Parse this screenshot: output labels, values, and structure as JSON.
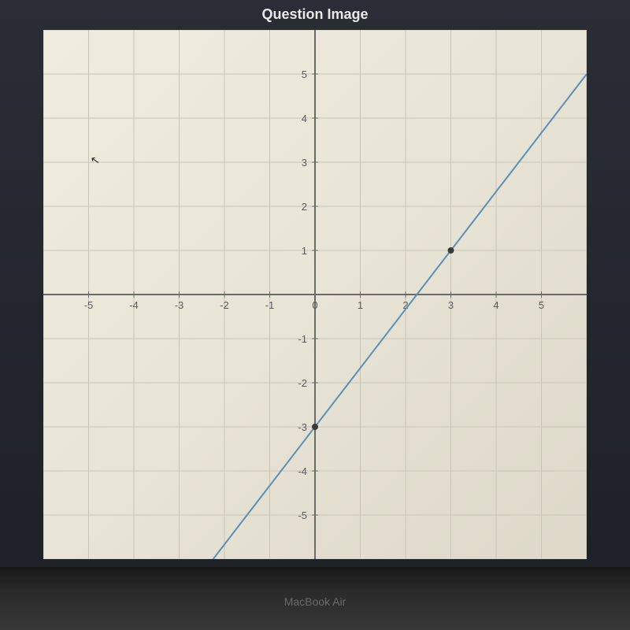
{
  "header": {
    "title": "Question Image"
  },
  "graph": {
    "type": "line",
    "xlim": [
      -6,
      6
    ],
    "ylim": [
      -6,
      6
    ],
    "xtick_step": 1,
    "ytick_step": 1,
    "x_labels": [
      -5,
      -4,
      -3,
      -2,
      -1,
      0,
      1,
      2,
      3,
      4,
      5
    ],
    "y_labels": [
      -5,
      -4,
      -3,
      -2,
      -1,
      1,
      2,
      3,
      4,
      5
    ],
    "background_color": "#ede9db",
    "grid_color": "#c8c4b6",
    "axis_color": "#6a6a6a",
    "line_color": "#5a8fb8",
    "line_width": 2,
    "label_fontsize": 13,
    "label_color": "#5a5a5a",
    "line_points": [
      {
        "x": -2.25,
        "y": -6
      },
      {
        "x": 6,
        "y": 5
      }
    ],
    "marked_points": [
      {
        "x": 0,
        "y": -3
      },
      {
        "x": 3,
        "y": 1
      }
    ],
    "point_color": "#3a3a3a",
    "point_radius": 4
  },
  "laptop": {
    "model": "MacBook Air"
  }
}
